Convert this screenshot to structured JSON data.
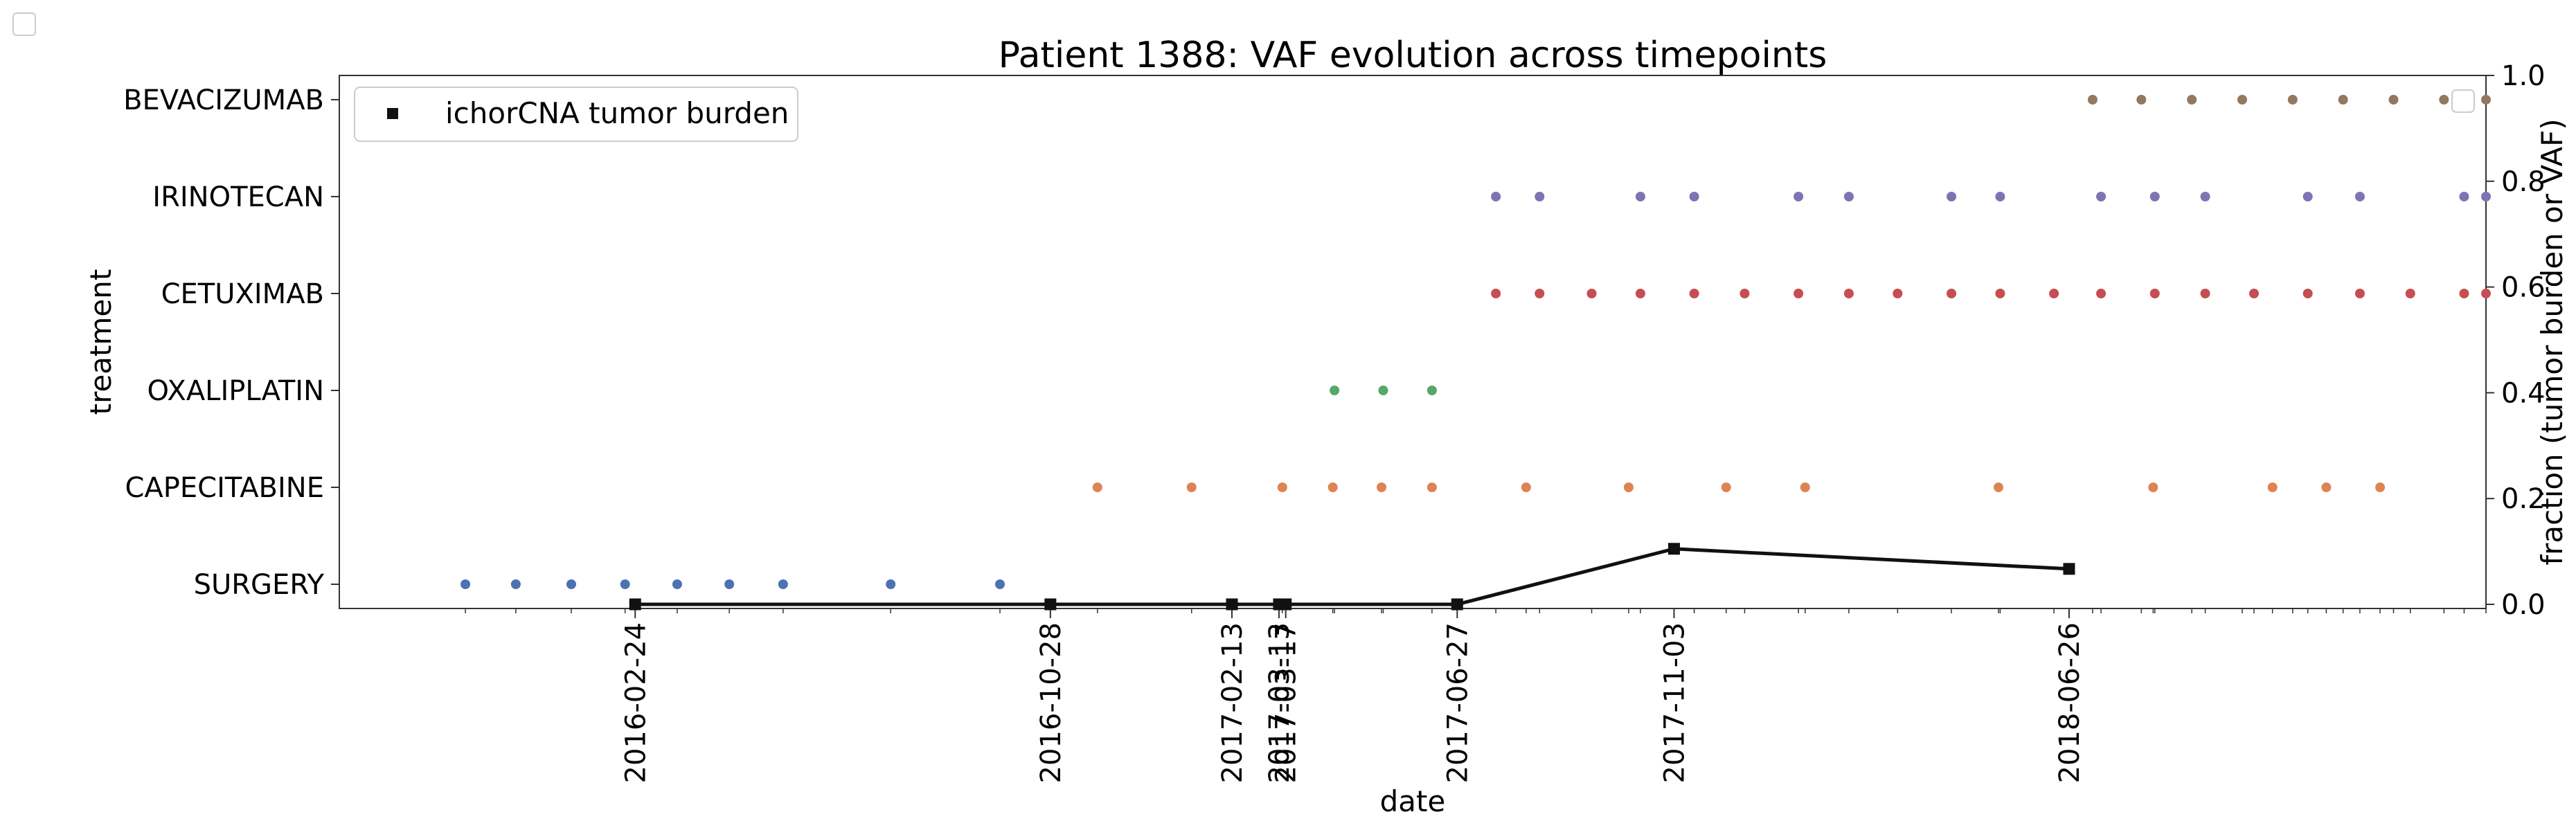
{
  "chart_data": {
    "type": "scatter",
    "title": "Patient 1388: VAF evolution across timepoints",
    "xlabel": "date",
    "ylabel_left": "treatment",
    "ylabel_right": "fraction (tumor burden or VAF)",
    "date_axis": {
      "start": "2015-09-01",
      "end": "2019-03-01",
      "tick_dates": [
        "2016-02-24",
        "2016-10-28",
        "2017-02-13",
        "2017-03-13",
        "2017-03-17",
        "2017-06-27",
        "2017-11-03",
        "2018-06-26"
      ],
      "tick_labels": [
        "2016-02-24",
        "2016-10-28",
        "2017-02-13",
        "2017-03-13",
        "2017-03-17",
        "2017-06-27",
        "2017-11-03",
        "2018-06-26"
      ]
    },
    "treatment_axis": {
      "categories": [
        "SURGERY",
        "CAPECITABINE",
        "OXALIPLATIN",
        "CETUXIMAB",
        "IRINOTECAN",
        "BEVACIZUMAB"
      ]
    },
    "fraction_axis": {
      "ylim": [
        0,
        1
      ],
      "ticks": [
        0.0,
        0.2,
        0.4,
        0.6,
        0.8,
        1.0
      ],
      "tick_labels": [
        "0.0",
        "0.2",
        "0.4",
        "0.6",
        "0.8",
        "1.0"
      ]
    },
    "treatments": [
      {
        "treatment": "SURGERY",
        "color": "#4c72b0",
        "dates": [
          "2015-11-15",
          "2015-12-15",
          "2016-01-17",
          "2016-02-18",
          "2016-03-20",
          "2016-04-20",
          "2016-05-22",
          "2016-07-25",
          "2016-09-28"
        ]
      },
      {
        "treatment": "CAPECITABINE",
        "color": "#dd8452",
        "dates": [
          "2016-11-25",
          "2017-01-20",
          "2017-03-15",
          "2017-04-14",
          "2017-05-13",
          "2017-06-12",
          "2017-08-07",
          "2017-10-07",
          "2017-12-04",
          "2018-01-20",
          "2018-05-15",
          "2018-08-15",
          "2018-10-25",
          "2018-11-26",
          "2018-12-28"
        ]
      },
      {
        "treatment": "OXALIPLATIN",
        "color": "#55a868",
        "dates": [
          "2017-04-15",
          "2017-05-14",
          "2017-06-12"
        ]
      },
      {
        "treatment": "CETUXIMAB",
        "color": "#c44e52",
        "dates": [
          "2017-07-20",
          "2017-08-15",
          "2017-09-15",
          "2017-10-14",
          "2017-11-15",
          "2017-12-15",
          "2018-01-16",
          "2018-02-15",
          "2018-03-16",
          "2018-04-17",
          "2018-05-16",
          "2018-06-17",
          "2018-07-15",
          "2018-08-16",
          "2018-09-15",
          "2018-10-14",
          "2018-11-15",
          "2018-12-16",
          "2019-01-15",
          "2019-02-16",
          "2019-03-01"
        ]
      },
      {
        "treatment": "IRINOTECAN",
        "color": "#8172b3",
        "dates": [
          "2017-07-20",
          "2017-08-15",
          "2017-10-14",
          "2017-11-15",
          "2018-01-16",
          "2018-02-15",
          "2018-04-17",
          "2018-05-16",
          "2018-07-15",
          "2018-08-16",
          "2018-09-15",
          "2018-11-15",
          "2018-12-16",
          "2019-02-16",
          "2019-03-01"
        ]
      },
      {
        "treatment": "BEVACIZUMAB",
        "color": "#937860",
        "dates": [
          "2018-07-10",
          "2018-08-08",
          "2018-09-07",
          "2018-10-07",
          "2018-11-06",
          "2018-12-06",
          "2019-01-05",
          "2019-02-04",
          "2019-03-01"
        ]
      }
    ],
    "series": [
      {
        "name": "ichorCNA tumor burden",
        "color": "#111111",
        "marker": "square",
        "x": [
          "2016-02-24",
          "2016-10-28",
          "2017-02-13",
          "2017-03-13",
          "2017-03-17",
          "2017-06-27",
          "2017-11-03",
          "2018-06-26"
        ],
        "y": [
          0.0,
          0.0,
          0.0,
          0.0,
          0.0,
          0.0,
          0.105,
          0.067
        ]
      }
    ],
    "legend": {
      "placement": "top-left",
      "entries": [
        "ichorCNA tumor burden"
      ]
    },
    "grid": false
  }
}
